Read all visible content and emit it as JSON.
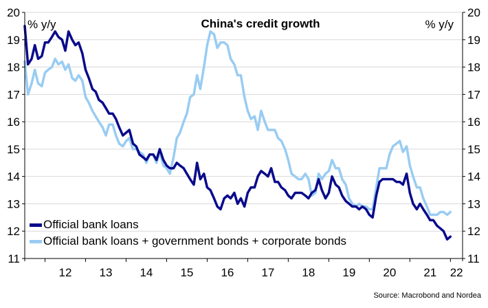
{
  "chart_data": {
    "type": "line",
    "title": "China's credit growth",
    "ylabel_left": "% y/y",
    "ylabel_right": "% y/y",
    "ylim": [
      11,
      20
    ],
    "yticks": [
      11,
      12,
      13,
      14,
      15,
      16,
      17,
      18,
      19,
      20
    ],
    "xlim": [
      2011.5,
      2022.3
    ],
    "xtick_labels": [
      {
        "label": "12",
        "year": 2012
      },
      {
        "label": "13",
        "year": 2013
      },
      {
        "label": "14",
        "year": 2014
      },
      {
        "label": "15",
        "year": 2015
      },
      {
        "label": "16",
        "year": 2016
      },
      {
        "label": "17",
        "year": 2017
      },
      {
        "label": "18",
        "year": 2018
      },
      {
        "label": "19",
        "year": 2019
      },
      {
        "label": "20",
        "year": 2020
      },
      {
        "label": "21",
        "year": 2021
      },
      {
        "label": "22",
        "year": 2022
      }
    ],
    "grid": true,
    "legend_position": "bottom-left",
    "source": "Source: Macrobond and Nordea",
    "series": [
      {
        "name": "Official bank loans",
        "color": "#0a0a8c",
        "points": [
          [
            2011.5,
            19.5
          ],
          [
            2011.58,
            18.1
          ],
          [
            2011.67,
            18.3
          ],
          [
            2011.75,
            18.8
          ],
          [
            2011.83,
            18.3
          ],
          [
            2011.92,
            18.4
          ],
          [
            2012.0,
            18.9
          ],
          [
            2012.08,
            18.9
          ],
          [
            2012.17,
            19.1
          ],
          [
            2012.25,
            19.3
          ],
          [
            2012.33,
            19.1
          ],
          [
            2012.42,
            19.0
          ],
          [
            2012.5,
            18.6
          ],
          [
            2012.58,
            19.3
          ],
          [
            2012.67,
            19.0
          ],
          [
            2012.75,
            18.8
          ],
          [
            2012.83,
            18.9
          ],
          [
            2012.92,
            18.5
          ],
          [
            2013.0,
            17.9
          ],
          [
            2013.08,
            17.6
          ],
          [
            2013.17,
            17.2
          ],
          [
            2013.25,
            17.1
          ],
          [
            2013.33,
            16.8
          ],
          [
            2013.42,
            16.7
          ],
          [
            2013.5,
            16.5
          ],
          [
            2013.58,
            16.3
          ],
          [
            2013.67,
            16.3
          ],
          [
            2013.75,
            16.1
          ],
          [
            2013.83,
            15.8
          ],
          [
            2013.92,
            15.5
          ],
          [
            2014.0,
            15.6
          ],
          [
            2014.08,
            15.7
          ],
          [
            2014.17,
            15.2
          ],
          [
            2014.25,
            15.1
          ],
          [
            2014.33,
            14.8
          ],
          [
            2014.42,
            14.7
          ],
          [
            2014.5,
            14.6
          ],
          [
            2014.58,
            14.8
          ],
          [
            2014.67,
            14.8
          ],
          [
            2014.75,
            14.6
          ],
          [
            2014.83,
            15.0
          ],
          [
            2014.92,
            14.6
          ],
          [
            2015.0,
            14.4
          ],
          [
            2015.08,
            14.3
          ],
          [
            2015.17,
            14.3
          ],
          [
            2015.25,
            14.5
          ],
          [
            2015.33,
            14.4
          ],
          [
            2015.42,
            14.3
          ],
          [
            2015.5,
            14.1
          ],
          [
            2015.58,
            13.9
          ],
          [
            2015.67,
            13.7
          ],
          [
            2015.75,
            14.5
          ],
          [
            2015.83,
            13.9
          ],
          [
            2015.92,
            14.1
          ],
          [
            2016.0,
            13.6
          ],
          [
            2016.08,
            13.5
          ],
          [
            2016.17,
            13.2
          ],
          [
            2016.25,
            12.9
          ],
          [
            2016.33,
            12.8
          ],
          [
            2016.42,
            13.2
          ],
          [
            2016.5,
            13.3
          ],
          [
            2016.58,
            13.2
          ],
          [
            2016.67,
            13.4
          ],
          [
            2016.75,
            13.0
          ],
          [
            2016.83,
            13.2
          ],
          [
            2016.92,
            12.9
          ],
          [
            2017.0,
            13.4
          ],
          [
            2017.08,
            13.6
          ],
          [
            2017.17,
            13.6
          ],
          [
            2017.25,
            14.0
          ],
          [
            2017.33,
            14.2
          ],
          [
            2017.42,
            14.1
          ],
          [
            2017.5,
            14.0
          ],
          [
            2017.58,
            14.3
          ],
          [
            2017.67,
            13.8
          ],
          [
            2017.75,
            13.8
          ],
          [
            2017.83,
            13.6
          ],
          [
            2017.92,
            13.5
          ],
          [
            2018.0,
            13.3
          ],
          [
            2018.08,
            13.2
          ],
          [
            2018.17,
            13.4
          ],
          [
            2018.25,
            13.4
          ],
          [
            2018.33,
            13.4
          ],
          [
            2018.42,
            13.3
          ],
          [
            2018.5,
            13.2
          ],
          [
            2018.58,
            13.4
          ],
          [
            2018.67,
            13.5
          ],
          [
            2018.75,
            13.9
          ],
          [
            2018.83,
            13.5
          ],
          [
            2018.92,
            13.2
          ],
          [
            2019.0,
            13.4
          ],
          [
            2019.08,
            14.0
          ],
          [
            2019.17,
            13.7
          ],
          [
            2019.25,
            13.6
          ],
          [
            2019.33,
            13.3
          ],
          [
            2019.42,
            13.1
          ],
          [
            2019.5,
            13.0
          ],
          [
            2019.58,
            12.9
          ],
          [
            2019.67,
            12.9
          ],
          [
            2019.75,
            12.8
          ],
          [
            2019.83,
            12.9
          ],
          [
            2019.92,
            12.8
          ],
          [
            2020.0,
            12.6
          ],
          [
            2020.08,
            12.5
          ],
          [
            2020.17,
            13.3
          ],
          [
            2020.25,
            13.8
          ],
          [
            2020.33,
            13.9
          ],
          [
            2020.42,
            13.9
          ],
          [
            2020.5,
            13.9
          ],
          [
            2020.58,
            13.9
          ],
          [
            2020.67,
            13.8
          ],
          [
            2020.75,
            13.8
          ],
          [
            2020.83,
            13.7
          ],
          [
            2020.92,
            14.1
          ],
          [
            2021.0,
            13.4
          ],
          [
            2021.08,
            13.0
          ],
          [
            2021.17,
            12.8
          ],
          [
            2021.25,
            13.0
          ],
          [
            2021.33,
            12.8
          ],
          [
            2021.42,
            12.6
          ],
          [
            2021.5,
            12.4
          ],
          [
            2021.58,
            12.4
          ],
          [
            2021.67,
            12.2
          ],
          [
            2021.75,
            12.1
          ],
          [
            2021.83,
            12.0
          ],
          [
            2021.92,
            11.7
          ],
          [
            2022.0,
            11.8
          ]
        ]
      },
      {
        "name": "Official bank loans + government bonds + corporate bonds",
        "color": "#99ccf2",
        "points": [
          [
            2011.5,
            18.2
          ],
          [
            2011.58,
            17.0
          ],
          [
            2011.67,
            17.4
          ],
          [
            2011.75,
            17.9
          ],
          [
            2011.83,
            17.4
          ],
          [
            2011.92,
            17.3
          ],
          [
            2012.0,
            17.8
          ],
          [
            2012.08,
            17.9
          ],
          [
            2012.17,
            18.0
          ],
          [
            2012.25,
            18.3
          ],
          [
            2012.33,
            18.1
          ],
          [
            2012.42,
            18.2
          ],
          [
            2012.5,
            17.9
          ],
          [
            2012.58,
            18.1
          ],
          [
            2012.67,
            17.6
          ],
          [
            2012.75,
            17.5
          ],
          [
            2012.83,
            17.7
          ],
          [
            2012.92,
            17.5
          ],
          [
            2013.0,
            16.9
          ],
          [
            2013.08,
            16.7
          ],
          [
            2013.17,
            16.4
          ],
          [
            2013.25,
            16.2
          ],
          [
            2013.33,
            16.0
          ],
          [
            2013.42,
            15.8
          ],
          [
            2013.5,
            15.5
          ],
          [
            2013.58,
            15.9
          ],
          [
            2013.67,
            15.9
          ],
          [
            2013.75,
            15.5
          ],
          [
            2013.83,
            15.2
          ],
          [
            2013.92,
            15.1
          ],
          [
            2014.0,
            15.3
          ],
          [
            2014.08,
            15.4
          ],
          [
            2014.17,
            15.0
          ],
          [
            2014.25,
            15.0
          ],
          [
            2014.33,
            14.9
          ],
          [
            2014.42,
            14.8
          ],
          [
            2014.5,
            14.5
          ],
          [
            2014.58,
            14.8
          ],
          [
            2014.67,
            14.8
          ],
          [
            2014.75,
            14.5
          ],
          [
            2014.83,
            14.9
          ],
          [
            2014.92,
            14.4
          ],
          [
            2015.0,
            14.3
          ],
          [
            2015.08,
            14.1
          ],
          [
            2015.17,
            14.7
          ],
          [
            2015.25,
            15.4
          ],
          [
            2015.33,
            15.6
          ],
          [
            2015.42,
            16.0
          ],
          [
            2015.5,
            16.3
          ],
          [
            2015.58,
            16.9
          ],
          [
            2015.67,
            17.0
          ],
          [
            2015.75,
            17.7
          ],
          [
            2015.83,
            17.2
          ],
          [
            2015.92,
            18.0
          ],
          [
            2016.0,
            18.8
          ],
          [
            2016.08,
            19.3
          ],
          [
            2016.17,
            19.2
          ],
          [
            2016.25,
            18.7
          ],
          [
            2016.33,
            18.9
          ],
          [
            2016.42,
            18.9
          ],
          [
            2016.5,
            18.8
          ],
          [
            2016.58,
            18.3
          ],
          [
            2016.67,
            18.1
          ],
          [
            2016.75,
            17.7
          ],
          [
            2016.83,
            17.7
          ],
          [
            2016.92,
            16.9
          ],
          [
            2017.0,
            16.4
          ],
          [
            2017.08,
            16.1
          ],
          [
            2017.17,
            16.2
          ],
          [
            2017.25,
            15.7
          ],
          [
            2017.33,
            16.4
          ],
          [
            2017.42,
            16.0
          ],
          [
            2017.5,
            15.7
          ],
          [
            2017.58,
            15.7
          ],
          [
            2017.67,
            15.7
          ],
          [
            2017.75,
            15.4
          ],
          [
            2017.83,
            15.3
          ],
          [
            2017.92,
            15.0
          ],
          [
            2018.0,
            14.6
          ],
          [
            2018.08,
            14.1
          ],
          [
            2018.17,
            14.0
          ],
          [
            2018.25,
            13.9
          ],
          [
            2018.33,
            13.9
          ],
          [
            2018.42,
            14.1
          ],
          [
            2018.5,
            13.9
          ],
          [
            2018.58,
            13.3
          ],
          [
            2018.67,
            13.4
          ],
          [
            2018.75,
            14.1
          ],
          [
            2018.83,
            13.9
          ],
          [
            2018.92,
            14.1
          ],
          [
            2019.0,
            14.2
          ],
          [
            2019.08,
            14.6
          ],
          [
            2019.17,
            14.3
          ],
          [
            2019.25,
            14.3
          ],
          [
            2019.33,
            13.9
          ],
          [
            2019.42,
            13.7
          ],
          [
            2019.5,
            13.2
          ],
          [
            2019.58,
            13.0
          ],
          [
            2019.67,
            12.9
          ],
          [
            2019.75,
            13.0
          ],
          [
            2019.83,
            12.9
          ],
          [
            2019.92,
            12.9
          ],
          [
            2020.0,
            12.8
          ],
          [
            2020.08,
            12.8
          ],
          [
            2020.17,
            13.6
          ],
          [
            2020.25,
            14.3
          ],
          [
            2020.33,
            14.3
          ],
          [
            2020.42,
            14.3
          ],
          [
            2020.5,
            14.8
          ],
          [
            2020.58,
            15.1
          ],
          [
            2020.67,
            15.2
          ],
          [
            2020.75,
            15.3
          ],
          [
            2020.83,
            14.9
          ],
          [
            2020.92,
            15.1
          ],
          [
            2021.0,
            14.4
          ],
          [
            2021.08,
            14.0
          ],
          [
            2021.17,
            13.6
          ],
          [
            2021.25,
            13.6
          ],
          [
            2021.33,
            13.2
          ],
          [
            2021.42,
            12.9
          ],
          [
            2021.5,
            12.6
          ],
          [
            2021.58,
            12.6
          ],
          [
            2021.67,
            12.6
          ],
          [
            2021.75,
            12.7
          ],
          [
            2021.83,
            12.7
          ],
          [
            2021.92,
            12.6
          ],
          [
            2022.0,
            12.7
          ]
        ]
      }
    ]
  }
}
